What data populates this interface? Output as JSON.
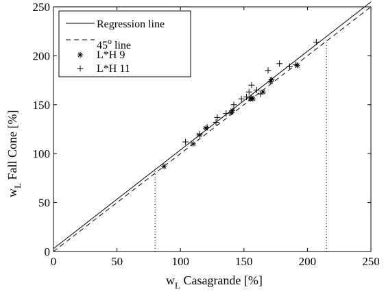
{
  "chart_data": {
    "type": "scatter",
    "xlabel": {
      "main": "w",
      "sub": "L",
      "rest": " Casagrande [%]"
    },
    "ylabel": {
      "main": "w",
      "sub": "L",
      "rest": " Fall Cone [%]"
    },
    "xlim": [
      0,
      250
    ],
    "ylim": [
      0,
      250
    ],
    "xticks": [
      "0",
      "50",
      "100",
      "150",
      "200",
      "250"
    ],
    "yticks": [
      "0",
      "50",
      "100",
      "150",
      "200",
      "250"
    ],
    "grid": false,
    "legend_position": "top-left",
    "legend": {
      "regression": "Regression line",
      "line45_main": "45",
      "line45_sup": "o",
      "line45_rest": " line",
      "lh9": "L*H 9",
      "lh11": "L*H 11"
    },
    "regression_line": {
      "x": [
        0,
        250
      ],
      "y": [
        3,
        255
      ]
    },
    "diagonal_line": {
      "x": [
        0,
        250
      ],
      "y": [
        0,
        250
      ]
    },
    "reference_lines": [
      {
        "x": 80,
        "y_top": 83
      },
      {
        "x": 215,
        "y_top": 217
      }
    ],
    "series": [
      {
        "name": "L*H 9",
        "marker": "asterisk",
        "points": [
          [
            87,
            87
          ],
          [
            110,
            110
          ],
          [
            115,
            119
          ],
          [
            120,
            126
          ],
          [
            140,
            142
          ],
          [
            141,
            144
          ],
          [
            155,
            156
          ],
          [
            156,
            157
          ],
          [
            157,
            156
          ],
          [
            165,
            163
          ],
          [
            171,
            174
          ],
          [
            172,
            176
          ],
          [
            192,
            190
          ]
        ]
      },
      {
        "name": "L*H 11",
        "marker": "plus",
        "points": [
          [
            104,
            112
          ],
          [
            115,
            120
          ],
          [
            121,
            127
          ],
          [
            128,
            132
          ],
          [
            129,
            137
          ],
          [
            136,
            141
          ],
          [
            142,
            150
          ],
          [
            148,
            156
          ],
          [
            152,
            158
          ],
          [
            154,
            163
          ],
          [
            156,
            170
          ],
          [
            160,
            165
          ],
          [
            163,
            161
          ],
          [
            169,
            185
          ],
          [
            178,
            192
          ],
          [
            186,
            189
          ],
          [
            191,
            191
          ],
          [
            207,
            214
          ]
        ]
      }
    ]
  }
}
